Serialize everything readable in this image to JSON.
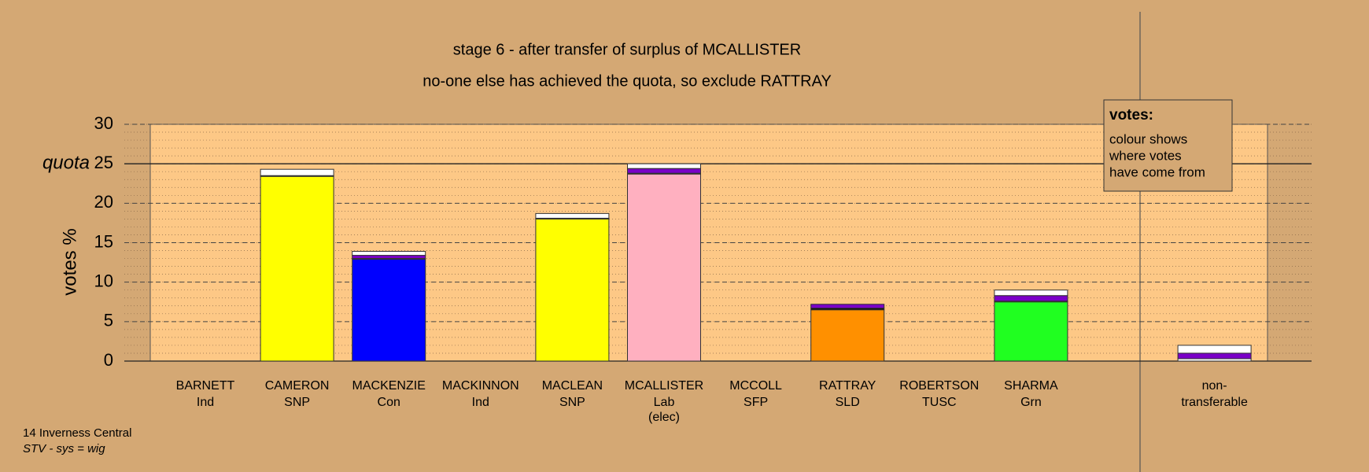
{
  "chart_data": {
    "type": "bar",
    "stacked": true,
    "title": "stage 6 - after transfer of surplus of MCALLISTER",
    "subtitle": "no-one else has achieved the quota, so exclude RATTRAY",
    "ylabel": "votes %",
    "categories": [
      "BARNETT",
      "CAMERON",
      "MACKENZIE",
      "MACKINNON",
      "MACLEAN",
      "MCALLISTER",
      "MCCOLL",
      "RATTRAY",
      "ROBERTSON",
      "SHARMA",
      null,
      "non-"
    ],
    "parties": [
      "Ind",
      "SNP",
      "Con",
      "Ind",
      "SNP",
      "Lab",
      "SFP",
      "SLD",
      "TUSC",
      "Grn",
      null,
      "transferable"
    ],
    "category_notes": [
      null,
      null,
      null,
      null,
      null,
      "(elec)",
      null,
      null,
      null,
      null,
      null,
      null
    ],
    "series": [
      {
        "colors": [
          "#808080",
          "#ffff00",
          "#0000ff",
          "#808080",
          "#ffff00",
          "#ffb0c0",
          "#ff0000",
          "#ff9000",
          "#c00000",
          "#20ff20",
          null,
          "#ffffff"
        ],
        "values": [
          0,
          23.4,
          12.9,
          0,
          18.0,
          23.7,
          0,
          6.5,
          0,
          7.5,
          null,
          0.3
        ]
      },
      {
        "color": "#000000",
        "values": [
          0,
          0.1,
          0.1,
          0,
          0.1,
          0.1,
          0,
          0.2,
          0,
          0.1,
          null,
          0
        ]
      },
      {
        "color": "#7a00c8",
        "values": [
          0,
          0,
          0.4,
          0,
          0,
          0.6,
          0,
          0.5,
          0,
          0.7,
          null,
          0.7
        ]
      },
      {
        "color": "#ffffff",
        "values": [
          0,
          0.8,
          0.5,
          0,
          0.6,
          0.6,
          0,
          0,
          0,
          0.7,
          null,
          1.0
        ]
      }
    ],
    "ylim": [
      0,
      30
    ],
    "yticks": [
      0,
      5,
      10,
      15,
      20,
      25,
      30
    ],
    "grid": true,
    "minor_grid": true,
    "quota": 25,
    "quota_label": "quota",
    "legend_box": {
      "title": "votes:",
      "lines": [
        "colour shows",
        "where votes",
        "have come from"
      ]
    },
    "footer": {
      "constituency": "14 Inverness Central",
      "system": "STV - sys = wig"
    }
  }
}
